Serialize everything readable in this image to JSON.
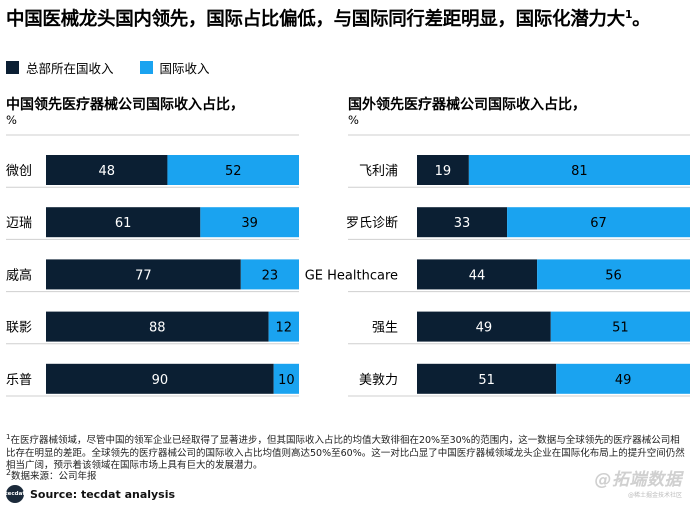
{
  "title": {
    "text": "中国医械龙头国内领先，国际占比偏低，与国际同行差距明显，国际化潜力大",
    "superscript": "1",
    "suffix": "。"
  },
  "legend": {
    "domestic_label": "总部所在国收入",
    "international_label": "国际收入"
  },
  "colors": {
    "domestic": "#0b1f33",
    "international": "#1aa3f0"
  },
  "left_chart": {
    "title": "中国领先医疗器械公司国际收入占比，",
    "unit": "%"
  },
  "right_chart": {
    "title": "国外领先医疗器械公司国际收入占比，",
    "unit": "%"
  },
  "chart_data": [
    {
      "type": "bar",
      "orientation": "horizontal",
      "stacked": true,
      "percent": true,
      "title": "中国领先医疗器械公司国际收入占比，",
      "unit": "%",
      "categories": [
        "微创",
        "迈瑞",
        "威高",
        "联影",
        "乐普"
      ],
      "series": [
        {
          "name": "总部所在国收入",
          "color": "#0b1f33",
          "values": [
            48,
            61,
            77,
            88,
            90
          ]
        },
        {
          "name": "国际收入",
          "color": "#1aa3f0",
          "values": [
            52,
            39,
            23,
            12,
            10
          ]
        }
      ],
      "xlim": [
        0,
        100
      ],
      "grid": true
    },
    {
      "type": "bar",
      "orientation": "horizontal",
      "stacked": true,
      "percent": true,
      "title": "国外领先医疗器械公司国际收入占比，",
      "unit": "%",
      "categories": [
        "飞利浦",
        "罗氏诊断",
        "GE Healthcare",
        "强生",
        "美敦力"
      ],
      "series": [
        {
          "name": "总部所在国收入",
          "color": "#0b1f33",
          "values": [
            19,
            33,
            44,
            49,
            51
          ]
        },
        {
          "name": "国际收入",
          "color": "#1aa3f0",
          "values": [
            81,
            67,
            56,
            51,
            49
          ]
        }
      ],
      "xlim": [
        0,
        100
      ],
      "grid": true
    }
  ],
  "footnote": {
    "marker": "1",
    "text": "在医疗器械领域，尽管中国的领军企业已经取得了显著进步，但其国际收入占比的均值大致徘徊在20%至30%的范围内，这一数据与全球领先的医疗器械公司相比存在明显的差距。全球领先的医疗器械公司的国际收入占比均值则高达50%至60%。这一对比凸显了中国医疗器械领域龙头企业在国际化布局上的提升空间仍然相当广阔，预示着该领域在国际市场上具有巨大的发展潜力。"
  },
  "source_line": {
    "marker": "2",
    "text": "数据来源：公司年报"
  },
  "source": {
    "logo_text": "tecdat",
    "text": "Source: tecdat analysis"
  },
  "watermark": {
    "main": "@拓端数据",
    "sub": "@稀土掘金技术社区"
  }
}
